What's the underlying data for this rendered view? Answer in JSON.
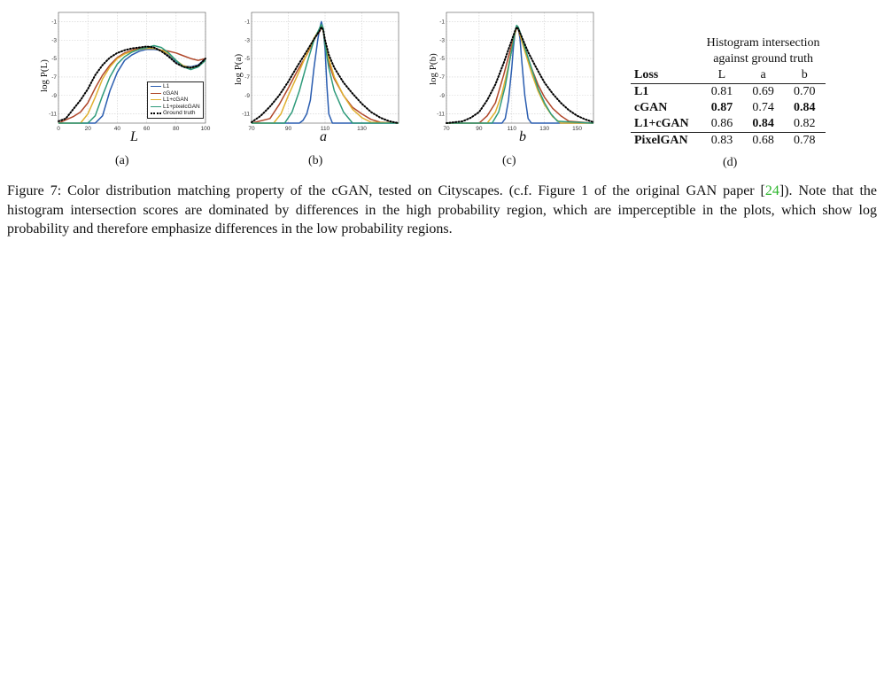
{
  "panels": [
    {
      "id": "a",
      "sublabel": "(a)",
      "ylabel": "log P(L)",
      "xlabel": "L",
      "xticks": [
        "0",
        "20",
        "40",
        "60",
        "80",
        "100"
      ],
      "yticks": [
        "-1",
        "-3",
        "-5",
        "-7",
        "-9",
        "-11"
      ]
    },
    {
      "id": "b",
      "sublabel": "(b)",
      "ylabel": "log P(a)",
      "xlabel": "a",
      "xticks": [
        "70",
        "90",
        "110",
        "130"
      ],
      "yticks": [
        "-1",
        "-3",
        "-5",
        "-7",
        "-9",
        "-11"
      ]
    },
    {
      "id": "c",
      "sublabel": "(c)",
      "ylabel": "log P(b)",
      "xlabel": "b",
      "xticks": [
        "70",
        "90",
        "110",
        "130",
        "150"
      ],
      "yticks": [
        "-1",
        "-3",
        "-5",
        "-7",
        "-9",
        "-11"
      ]
    }
  ],
  "legend": [
    {
      "label": "L1",
      "color": "#2a5db0",
      "style": "solid"
    },
    {
      "label": "cGAN",
      "color": "#b0472a",
      "style": "solid"
    },
    {
      "label": "L1+cGAN",
      "color": "#e0b030",
      "style": "solid"
    },
    {
      "label": "L1+pixelcGAN",
      "color": "#2e9a7a",
      "style": "solid"
    },
    {
      "label": "Ground truth",
      "color": "#000000",
      "style": "dotted"
    }
  ],
  "chart_data": [
    {
      "type": "line",
      "xlabel": "L",
      "ylabel": "log P(L)",
      "xlim": [
        0,
        100
      ],
      "ylim": [
        -12,
        0
      ],
      "series": [
        {
          "name": "L1",
          "color": "#2a5db0",
          "x": [
            0,
            25,
            30,
            35,
            40,
            45,
            50,
            55,
            60,
            65,
            70,
            75,
            80,
            85,
            90,
            95,
            100
          ],
          "y": [
            -12,
            -12,
            -11.2,
            -8.5,
            -6.5,
            -5.2,
            -4.6,
            -4.2,
            -4.0,
            -4.0,
            -4.1,
            -4.6,
            -5.3,
            -5.8,
            -5.9,
            -5.7,
            -5.0
          ]
        },
        {
          "name": "cGAN",
          "color": "#b0472a",
          "x": [
            0,
            10,
            15,
            20,
            25,
            30,
            35,
            40,
            45,
            50,
            55,
            60,
            65,
            70,
            75,
            80,
            85,
            90,
            95,
            100
          ],
          "y": [
            -12,
            -11.3,
            -10.8,
            -9.8,
            -8.2,
            -6.8,
            -5.7,
            -4.9,
            -4.4,
            -4.1,
            -3.9,
            -3.8,
            -3.9,
            -4.1,
            -4.2,
            -4.4,
            -4.7,
            -5.0,
            -5.2,
            -5.0
          ]
        },
        {
          "name": "L1+cGAN",
          "color": "#e0b030",
          "x": [
            0,
            15,
            20,
            25,
            30,
            35,
            40,
            45,
            50,
            55,
            60,
            65,
            70,
            75,
            80,
            85,
            90,
            95,
            100
          ],
          "y": [
            -12,
            -12,
            -11,
            -9.2,
            -7.2,
            -5.9,
            -5.0,
            -4.5,
            -4.2,
            -4.0,
            -3.9,
            -3.9,
            -4.1,
            -4.5,
            -5.2,
            -5.8,
            -6.0,
            -5.8,
            -5.2
          ]
        },
        {
          "name": "L1+pixelcGAN",
          "color": "#2e9a7a",
          "x": [
            0,
            20,
            25,
            30,
            35,
            40,
            45,
            50,
            55,
            60,
            65,
            70,
            75,
            80,
            85,
            90,
            95,
            100
          ],
          "y": [
            -12,
            -12,
            -11.2,
            -9.0,
            -7.0,
            -5.6,
            -4.8,
            -4.3,
            -4.0,
            -3.8,
            -3.6,
            -3.8,
            -4.4,
            -5.2,
            -5.9,
            -6.2,
            -5.9,
            -5.2
          ]
        },
        {
          "name": "Ground truth",
          "color": "#000000",
          "x": [
            0,
            5,
            10,
            15,
            20,
            25,
            30,
            35,
            40,
            45,
            50,
            55,
            60,
            65,
            70,
            75,
            80,
            85,
            90,
            95,
            100
          ],
          "y": [
            -11.8,
            -11.5,
            -10.5,
            -9.5,
            -8.3,
            -6.8,
            -5.7,
            -4.9,
            -4.4,
            -4.1,
            -3.9,
            -3.8,
            -3.7,
            -3.8,
            -4.2,
            -4.8,
            -5.5,
            -5.9,
            -6.0,
            -5.8,
            -5.0
          ]
        }
      ]
    },
    {
      "type": "line",
      "xlabel": "a",
      "ylabel": "log P(a)",
      "xlim": [
        70,
        150
      ],
      "ylim": [
        -12,
        0
      ],
      "series": [
        {
          "name": "L1",
          "color": "#2a5db0",
          "x": [
            70,
            96,
            98,
            100,
            102,
            104,
            106,
            107,
            108,
            109,
            110,
            111,
            112,
            114,
            116,
            150
          ],
          "y": [
            -12,
            -12,
            -11.7,
            -11,
            -9.5,
            -6,
            -3,
            -1.8,
            -1.0,
            -1.8,
            -4,
            -8,
            -11,
            -12,
            -12,
            -12
          ]
        },
        {
          "name": "cGAN",
          "color": "#b0472a",
          "x": [
            70,
            80,
            85,
            90,
            95,
            100,
            103,
            105,
            107,
            108,
            109,
            110,
            112,
            115,
            120,
            125,
            130,
            135,
            140,
            150
          ],
          "y": [
            -12,
            -11.5,
            -10,
            -8.2,
            -6.3,
            -4.6,
            -3.4,
            -2.6,
            -2.1,
            -1.6,
            -1.9,
            -3.5,
            -5.5,
            -7.2,
            -9.0,
            -10.3,
            -11.0,
            -11.6,
            -11.9,
            -12
          ]
        },
        {
          "name": "L1+cGAN",
          "color": "#e0b030",
          "x": [
            70,
            82,
            86,
            90,
            95,
            100,
            104,
            107,
            108,
            109,
            110,
            112,
            115,
            120,
            125,
            130,
            135,
            150
          ],
          "y": [
            -12,
            -12,
            -11,
            -9,
            -6.8,
            -4.5,
            -2.8,
            -1.8,
            -1.5,
            -2.0,
            -3.2,
            -5.0,
            -7.0,
            -9.0,
            -10.5,
            -11.4,
            -11.9,
            -12
          ]
        },
        {
          "name": "L1+pixelcGAN",
          "color": "#2e9a7a",
          "x": [
            70,
            88,
            92,
            96,
            100,
            104,
            107,
            108,
            109,
            110,
            112,
            115,
            120,
            125,
            150
          ],
          "y": [
            -12,
            -12,
            -10.8,
            -8.5,
            -5.6,
            -3.0,
            -1.7,
            -1.3,
            -1.7,
            -3.5,
            -6.0,
            -8.5,
            -10.8,
            -12,
            -12
          ]
        },
        {
          "name": "Ground truth",
          "color": "#000000",
          "x": [
            70,
            75,
            80,
            85,
            90,
            95,
            100,
            104,
            107,
            108,
            109,
            110,
            112,
            115,
            120,
            125,
            130,
            135,
            140,
            145,
            150
          ],
          "y": [
            -11.9,
            -11.2,
            -10.2,
            -9.0,
            -7.5,
            -5.8,
            -4.2,
            -2.9,
            -2.0,
            -1.6,
            -1.9,
            -3.0,
            -4.6,
            -6.0,
            -7.6,
            -8.8,
            -9.9,
            -10.8,
            -11.4,
            -11.8,
            -12
          ]
        }
      ]
    },
    {
      "type": "line",
      "xlabel": "b",
      "ylabel": "log P(b)",
      "xlim": [
        70,
        160
      ],
      "ylim": [
        -12,
        0
      ],
      "series": [
        {
          "name": "L1",
          "color": "#2a5db0",
          "x": [
            70,
            104,
            106,
            108,
            110,
            111,
            112,
            113,
            114,
            115,
            116,
            118,
            120,
            122,
            160
          ],
          "y": [
            -12,
            -12,
            -11.5,
            -9.5,
            -6,
            -3.8,
            -2.2,
            -1.5,
            -1.8,
            -2.8,
            -5,
            -9,
            -11.5,
            -12,
            -12
          ]
        },
        {
          "name": "cGAN",
          "color": "#b0472a",
          "x": [
            70,
            90,
            95,
            100,
            105,
            108,
            110,
            112,
            113,
            114,
            115,
            118,
            122,
            126,
            130,
            135,
            140,
            145,
            160
          ],
          "y": [
            -12,
            -12,
            -11.2,
            -9.8,
            -6.8,
            -4.8,
            -3.5,
            -2.2,
            -1.7,
            -1.8,
            -2.5,
            -4.0,
            -6.0,
            -7.8,
            -9.2,
            -10.4,
            -11.2,
            -11.8,
            -12
          ]
        },
        {
          "name": "L1+cGAN",
          "color": "#e0b030",
          "x": [
            70,
            95,
            100,
            104,
            108,
            110,
            112,
            113,
            114,
            115,
            118,
            122,
            126,
            130,
            135,
            140,
            160
          ],
          "y": [
            -12,
            -12,
            -10.8,
            -8.8,
            -5.8,
            -4.0,
            -2.3,
            -1.5,
            -1.7,
            -2.4,
            -4.2,
            -6.5,
            -8.5,
            -10.0,
            -11.3,
            -12,
            -12
          ]
        },
        {
          "name": "L1+pixelcGAN",
          "color": "#2e9a7a",
          "x": [
            70,
            98,
            102,
            106,
            109,
            111,
            112,
            113,
            114,
            116,
            118,
            122,
            126,
            130,
            134,
            138,
            160
          ],
          "y": [
            -12,
            -12,
            -10.8,
            -8.0,
            -5.0,
            -3.2,
            -2.0,
            -1.4,
            -1.6,
            -2.6,
            -3.8,
            -6.0,
            -8.2,
            -9.8,
            -11.0,
            -11.8,
            -12
          ]
        },
        {
          "name": "Ground truth",
          "color": "#000000",
          "x": [
            70,
            80,
            85,
            90,
            95,
            100,
            105,
            108,
            110,
            112,
            113,
            114,
            116,
            120,
            125,
            130,
            135,
            140,
            145,
            150,
            155,
            160
          ],
          "y": [
            -12,
            -11.8,
            -11.4,
            -10.8,
            -9.5,
            -7.8,
            -5.5,
            -4.0,
            -3.0,
            -2.0,
            -1.6,
            -1.8,
            -2.6,
            -4.3,
            -6.0,
            -7.6,
            -8.8,
            -9.8,
            -10.6,
            -11.2,
            -11.6,
            -11.9
          ]
        }
      ]
    }
  ],
  "table": {
    "caption_line1": "Histogram intersection",
    "caption_line2": "against ground truth",
    "header": [
      "Loss",
      "L",
      "a",
      "b"
    ],
    "rows": [
      {
        "loss": "L1",
        "L": "0.81",
        "a": "0.69",
        "b": "0.70",
        "bold": []
      },
      {
        "loss": "cGAN",
        "L": "0.87",
        "a": "0.74",
        "b": "0.84",
        "bold": [
          "L",
          "b"
        ]
      },
      {
        "loss": "L1+cGAN",
        "L": "0.86",
        "a": "0.84",
        "b": "0.82",
        "bold": [
          "a"
        ]
      },
      {
        "loss": "PixelGAN",
        "L": "0.83",
        "a": "0.68",
        "b": "0.78",
        "bold": []
      }
    ],
    "sublabel": "(d)"
  },
  "caption": {
    "part1": "Figure 7: Color distribution matching property of the cGAN, tested on Cityscapes. (c.f. Figure 1 of the original GAN paper [",
    "cite": "24",
    "part2": "]). Note that the histogram intersection scores are dominated by differences in the high probability region, which are imperceptible in the plots, which show log probability and therefore emphasize differences in the low probability regions."
  }
}
